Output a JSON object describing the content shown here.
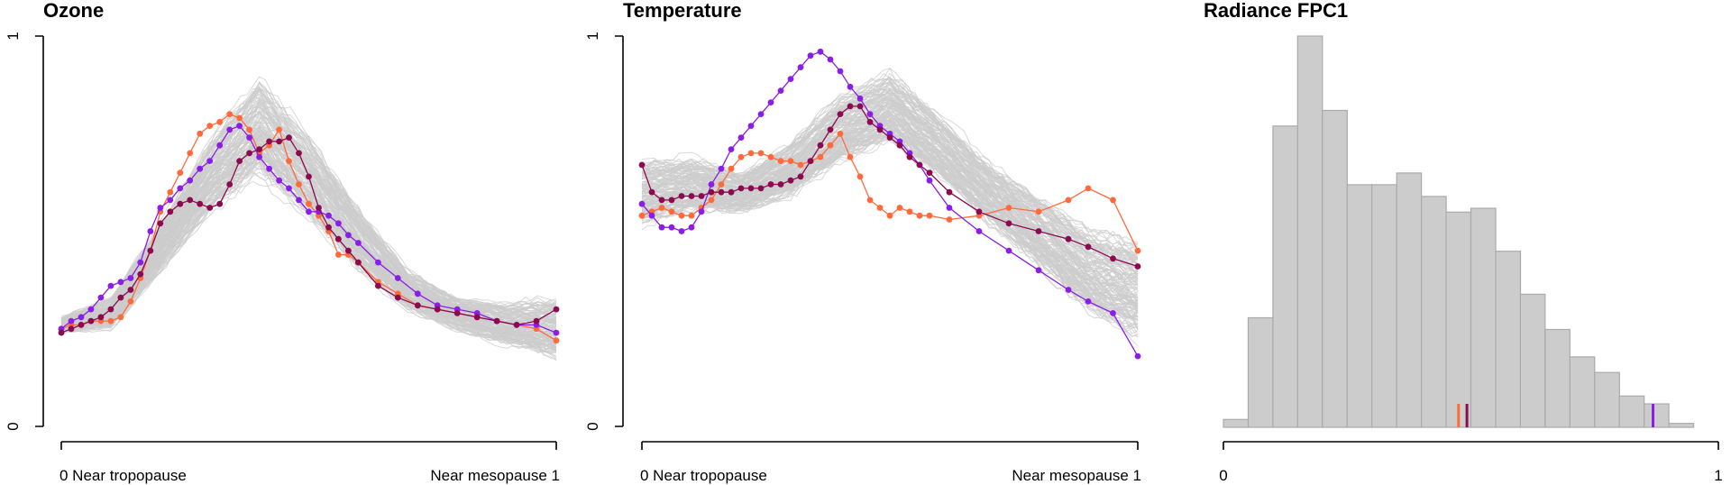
{
  "colors": {
    "background_curves": "#cccccc",
    "orange": "#ff6a3d",
    "purple": "#8b1ee6",
    "maroon": "#8b0a50",
    "hist_fill": "#cccccc",
    "hist_stroke": "#aaaaaa"
  },
  "chart_data": [
    {
      "type": "line",
      "title": "Ozone",
      "xlabel": "",
      "ylabel": "",
      "xlim": [
        0,
        1
      ],
      "ylim": [
        0,
        1
      ],
      "x_tick_labels": [
        "0 Near tropopause",
        "Near mesopause 1"
      ],
      "y_tick_labels": [
        "0",
        "1"
      ],
      "grid": false,
      "background_band": {
        "description_points_x": [
          0,
          0.1,
          0.2,
          0.3,
          0.4,
          0.5,
          0.6,
          0.7,
          0.8,
          0.9,
          1.0
        ],
        "center": [
          0.26,
          0.29,
          0.46,
          0.64,
          0.77,
          0.64,
          0.48,
          0.35,
          0.29,
          0.26,
          0.25
        ],
        "spread": [
          0.02,
          0.04,
          0.06,
          0.09,
          0.12,
          0.1,
          0.08,
          0.05,
          0.04,
          0.05,
          0.08
        ]
      },
      "series": [
        {
          "color": "orange",
          "x": [
            0,
            0.02,
            0.04,
            0.06,
            0.08,
            0.1,
            0.12,
            0.14,
            0.16,
            0.18,
            0.2,
            0.22,
            0.24,
            0.26,
            0.28,
            0.3,
            0.32,
            0.34,
            0.36,
            0.38,
            0.4,
            0.42,
            0.44,
            0.46,
            0.48,
            0.5,
            0.52,
            0.54,
            0.56,
            0.58,
            0.6,
            0.64,
            0.68,
            0.72,
            0.76,
            0.8,
            0.84,
            0.88,
            0.92,
            0.96,
            1.0
          ],
          "values": [
            0.25,
            0.26,
            0.26,
            0.27,
            0.27,
            0.27,
            0.28,
            0.32,
            0.38,
            0.45,
            0.55,
            0.6,
            0.65,
            0.7,
            0.75,
            0.77,
            0.78,
            0.8,
            0.79,
            0.76,
            0.7,
            0.72,
            0.76,
            0.68,
            0.62,
            0.57,
            0.54,
            0.5,
            0.44,
            0.44,
            0.42,
            0.37,
            0.34,
            0.31,
            0.3,
            0.29,
            0.28,
            0.27,
            0.26,
            0.25,
            0.22
          ]
        },
        {
          "color": "purple",
          "x": [
            0,
            0.02,
            0.04,
            0.06,
            0.08,
            0.1,
            0.12,
            0.14,
            0.16,
            0.18,
            0.2,
            0.22,
            0.24,
            0.26,
            0.28,
            0.3,
            0.32,
            0.34,
            0.36,
            0.38,
            0.4,
            0.42,
            0.44,
            0.46,
            0.48,
            0.5,
            0.52,
            0.54,
            0.56,
            0.58,
            0.6,
            0.64,
            0.68,
            0.72,
            0.76,
            0.8,
            0.84,
            0.88,
            0.92,
            0.96,
            1.0
          ],
          "values": [
            0.25,
            0.27,
            0.28,
            0.3,
            0.33,
            0.36,
            0.37,
            0.38,
            0.42,
            0.5,
            0.56,
            0.58,
            0.61,
            0.63,
            0.66,
            0.68,
            0.72,
            0.76,
            0.77,
            0.74,
            0.69,
            0.66,
            0.63,
            0.61,
            0.58,
            0.55,
            0.55,
            0.54,
            0.52,
            0.49,
            0.47,
            0.42,
            0.38,
            0.34,
            0.31,
            0.3,
            0.29,
            0.27,
            0.26,
            0.26,
            0.24
          ]
        },
        {
          "color": "maroon",
          "x": [
            0,
            0.02,
            0.04,
            0.06,
            0.08,
            0.1,
            0.12,
            0.14,
            0.16,
            0.18,
            0.2,
            0.22,
            0.24,
            0.26,
            0.28,
            0.3,
            0.32,
            0.34,
            0.36,
            0.38,
            0.4,
            0.42,
            0.44,
            0.46,
            0.48,
            0.5,
            0.52,
            0.54,
            0.56,
            0.58,
            0.6,
            0.64,
            0.68,
            0.72,
            0.76,
            0.8,
            0.84,
            0.88,
            0.92,
            0.96,
            1.0
          ],
          "values": [
            0.24,
            0.25,
            0.26,
            0.27,
            0.28,
            0.3,
            0.33,
            0.35,
            0.39,
            0.45,
            0.52,
            0.55,
            0.57,
            0.58,
            0.57,
            0.56,
            0.57,
            0.62,
            0.68,
            0.7,
            0.71,
            0.73,
            0.73,
            0.74,
            0.7,
            0.64,
            0.56,
            0.51,
            0.48,
            0.45,
            0.42,
            0.36,
            0.33,
            0.31,
            0.3,
            0.29,
            0.28,
            0.27,
            0.26,
            0.27,
            0.3
          ]
        }
      ]
    },
    {
      "type": "line",
      "title": "Temperature",
      "xlabel": "",
      "ylabel": "",
      "xlim": [
        0,
        1
      ],
      "ylim": [
        0,
        1
      ],
      "x_tick_labels": [
        "0 Near tropopause",
        "Near mesopause 1"
      ],
      "y_tick_labels": [
        "0",
        "1"
      ],
      "grid": false,
      "background_band": {
        "description_points_x": [
          0,
          0.1,
          0.2,
          0.3,
          0.4,
          0.5,
          0.6,
          0.7,
          0.8,
          0.9,
          1.0
        ],
        "center": [
          0.6,
          0.62,
          0.6,
          0.66,
          0.76,
          0.82,
          0.72,
          0.6,
          0.5,
          0.4,
          0.35
        ],
        "spread": [
          0.08,
          0.07,
          0.05,
          0.07,
          0.08,
          0.09,
          0.08,
          0.08,
          0.09,
          0.1,
          0.12
        ]
      },
      "series": [
        {
          "color": "orange",
          "x": [
            0,
            0.02,
            0.04,
            0.06,
            0.08,
            0.1,
            0.12,
            0.14,
            0.16,
            0.18,
            0.2,
            0.22,
            0.24,
            0.26,
            0.28,
            0.3,
            0.32,
            0.34,
            0.36,
            0.38,
            0.4,
            0.42,
            0.44,
            0.46,
            0.48,
            0.5,
            0.52,
            0.54,
            0.56,
            0.58,
            0.62,
            0.68,
            0.74,
            0.8,
            0.86,
            0.9,
            0.95,
            1.0
          ],
          "values": [
            0.54,
            0.55,
            0.56,
            0.55,
            0.54,
            0.54,
            0.56,
            0.58,
            0.62,
            0.66,
            0.69,
            0.7,
            0.7,
            0.69,
            0.68,
            0.68,
            0.67,
            0.68,
            0.69,
            0.72,
            0.75,
            0.69,
            0.64,
            0.58,
            0.56,
            0.54,
            0.56,
            0.55,
            0.54,
            0.54,
            0.53,
            0.54,
            0.56,
            0.55,
            0.58,
            0.61,
            0.58,
            0.45
          ]
        },
        {
          "color": "purple",
          "x": [
            0,
            0.02,
            0.04,
            0.06,
            0.08,
            0.1,
            0.12,
            0.14,
            0.16,
            0.18,
            0.2,
            0.22,
            0.24,
            0.26,
            0.28,
            0.3,
            0.32,
            0.34,
            0.36,
            0.38,
            0.4,
            0.42,
            0.44,
            0.46,
            0.48,
            0.5,
            0.52,
            0.54,
            0.56,
            0.58,
            0.62,
            0.68,
            0.74,
            0.8,
            0.86,
            0.9,
            0.95,
            1.0
          ],
          "values": [
            0.57,
            0.54,
            0.51,
            0.51,
            0.5,
            0.51,
            0.55,
            0.62,
            0.66,
            0.71,
            0.74,
            0.77,
            0.8,
            0.83,
            0.86,
            0.89,
            0.92,
            0.95,
            0.96,
            0.94,
            0.91,
            0.87,
            0.84,
            0.8,
            0.77,
            0.75,
            0.73,
            0.7,
            0.67,
            0.63,
            0.56,
            0.5,
            0.45,
            0.4,
            0.35,
            0.32,
            0.29,
            0.18
          ]
        },
        {
          "color": "maroon",
          "x": [
            0,
            0.02,
            0.04,
            0.06,
            0.08,
            0.1,
            0.12,
            0.14,
            0.16,
            0.18,
            0.2,
            0.22,
            0.24,
            0.26,
            0.28,
            0.3,
            0.32,
            0.34,
            0.36,
            0.38,
            0.4,
            0.42,
            0.44,
            0.46,
            0.48,
            0.5,
            0.52,
            0.54,
            0.56,
            0.58,
            0.62,
            0.68,
            0.74,
            0.8,
            0.86,
            0.9,
            0.95,
            1.0
          ],
          "values": [
            0.67,
            0.6,
            0.58,
            0.58,
            0.59,
            0.59,
            0.59,
            0.6,
            0.6,
            0.6,
            0.61,
            0.61,
            0.61,
            0.62,
            0.62,
            0.63,
            0.64,
            0.68,
            0.72,
            0.76,
            0.8,
            0.82,
            0.82,
            0.78,
            0.76,
            0.74,
            0.72,
            0.69,
            0.67,
            0.65,
            0.6,
            0.55,
            0.52,
            0.5,
            0.48,
            0.46,
            0.43,
            0.41
          ]
        }
      ]
    },
    {
      "type": "bar",
      "title": "Radiance FPC1",
      "xlabel": "",
      "ylabel": "",
      "xlim": [
        0,
        1
      ],
      "x_tick_labels": [
        "0",
        "1"
      ],
      "grid": false,
      "bins": [
        [
          0.0,
          0.05,
          0.02
        ],
        [
          0.05,
          0.1,
          0.28
        ],
        [
          0.1,
          0.15,
          0.77
        ],
        [
          0.15,
          0.2,
          1.0
        ],
        [
          0.2,
          0.25,
          0.81
        ],
        [
          0.25,
          0.3,
          0.62
        ],
        [
          0.3,
          0.35,
          0.62
        ],
        [
          0.35,
          0.4,
          0.65
        ],
        [
          0.4,
          0.45,
          0.59
        ],
        [
          0.45,
          0.5,
          0.55
        ],
        [
          0.5,
          0.55,
          0.56
        ],
        [
          0.55,
          0.6,
          0.45
        ],
        [
          0.6,
          0.65,
          0.34
        ],
        [
          0.65,
          0.7,
          0.25
        ],
        [
          0.7,
          0.75,
          0.18
        ],
        [
          0.75,
          0.8,
          0.14
        ],
        [
          0.8,
          0.85,
          0.08
        ],
        [
          0.85,
          0.9,
          0.06
        ],
        [
          0.9,
          0.95,
          0.01
        ]
      ],
      "markers": [
        {
          "color": "orange",
          "x": 0.475
        },
        {
          "color": "maroon",
          "x": 0.492
        },
        {
          "color": "purple",
          "x": 0.868
        }
      ]
    }
  ]
}
